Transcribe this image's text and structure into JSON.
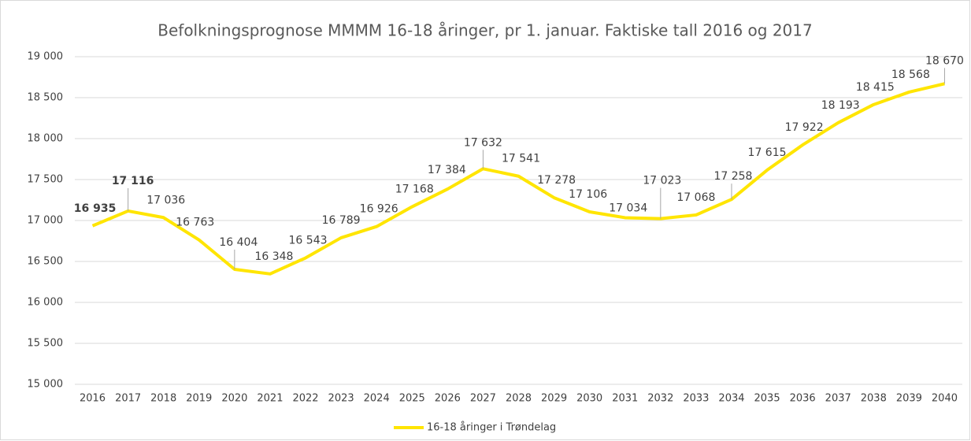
{
  "chart_data": {
    "type": "line",
    "title": "Befolkningsprognose MMMM 16-18 åringer, pr 1. januar. Faktiske tall 2016 og 2017",
    "categories": [
      "2016",
      "2017",
      "2018",
      "2019",
      "2020",
      "2021",
      "2022",
      "2023",
      "2024",
      "2025",
      "2026",
      "2027",
      "2028",
      "2029",
      "2030",
      "2031",
      "2032",
      "2033",
      "2034",
      "2035",
      "2036",
      "2037",
      "2038",
      "2039",
      "2040"
    ],
    "series": [
      {
        "name": "16-18 åringer i Trøndelag",
        "color": "#ffe500",
        "values": [
          16935,
          17116,
          17036,
          16763,
          16404,
          16348,
          16543,
          16789,
          16926,
          17168,
          17384,
          17632,
          17541,
          17278,
          17106,
          17034,
          17023,
          17068,
          17258,
          17615,
          17922,
          18193,
          18415,
          18568,
          18670
        ],
        "value_labels": [
          "16 935",
          "17 116",
          "17 036",
          "16 763",
          "16 404",
          "16 348",
          "16 543",
          "16 789",
          "16 926",
          "17 168",
          "17 384",
          "17 632",
          "17 541",
          "17 278",
          "17 106",
          "17 034",
          "17 023",
          "17 068",
          "17 258",
          "17 615",
          "17 922",
          "18 193",
          "18 415",
          "18 568",
          "18 670"
        ]
      }
    ],
    "ylim": [
      15000,
      19000
    ],
    "yticks": [
      {
        "value": 15000,
        "label": "15 000"
      },
      {
        "value": 15500,
        "label": "15 500"
      },
      {
        "value": 16000,
        "label": "16 000"
      },
      {
        "value": 16500,
        "label": "16 500"
      },
      {
        "value": 17000,
        "label": "17 000"
      },
      {
        "value": 17500,
        "label": "17 500"
      },
      {
        "value": 18000,
        "label": "18 000"
      },
      {
        "value": 18500,
        "label": "18 500"
      },
      {
        "value": 19000,
        "label": "19 000"
      }
    ],
    "grid": true,
    "legend": "bottom"
  }
}
